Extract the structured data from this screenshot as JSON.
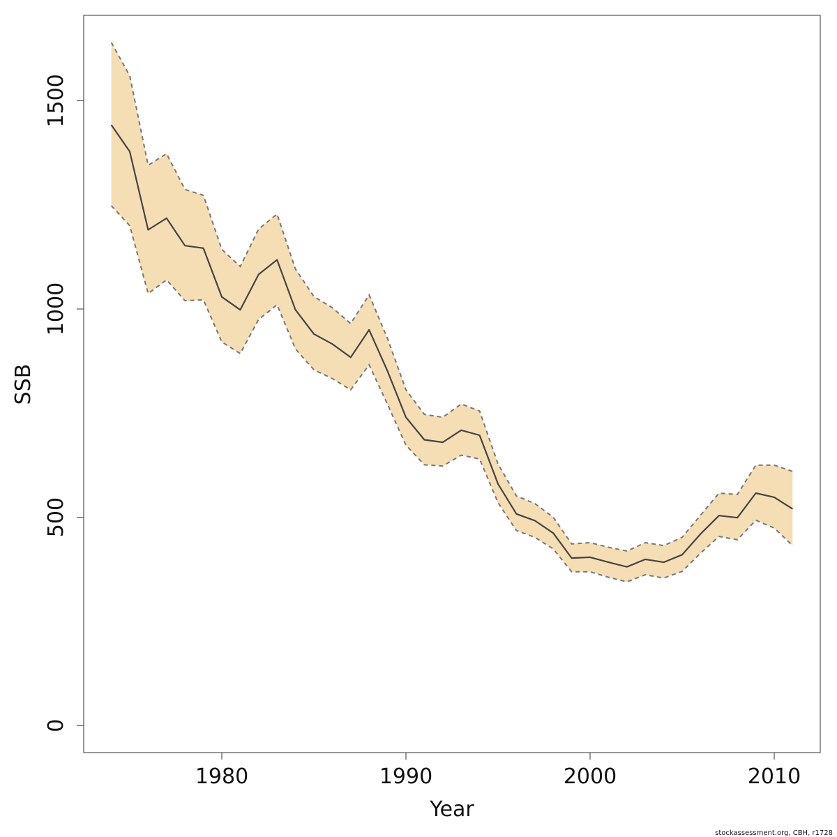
{
  "chart_data": {
    "type": "area",
    "title": "",
    "xlabel": "Year",
    "ylabel": "SSB",
    "xlim": [
      1972.5,
      2012.5
    ],
    "ylim": [
      -65,
      1705
    ],
    "x_ticks": [
      1980,
      1990,
      2000,
      2010
    ],
    "y_ticks": [
      0,
      500,
      1000,
      1500
    ],
    "grid": false,
    "x": [
      1974,
      1975,
      1976,
      1977,
      1978,
      1979,
      1980,
      1981,
      1982,
      1983,
      1984,
      1985,
      1986,
      1987,
      1988,
      1989,
      1990,
      1991,
      1992,
      1993,
      1994,
      1995,
      1996,
      1997,
      1998,
      1999,
      2000,
      2001,
      2002,
      2003,
      2004,
      2005,
      2006,
      2007,
      2008,
      2009,
      2010,
      2011
    ],
    "series": [
      {
        "name": "",
        "role": "estimate",
        "color": "#444444",
        "values": [
          1442,
          1378,
          1190,
          1218,
          1152,
          1146,
          1029,
          998,
          1083,
          1118,
          998,
          940,
          916,
          884,
          950,
          851,
          740,
          686,
          680,
          709,
          697,
          580,
          508,
          492,
          462,
          402,
          404,
          392,
          381,
          399,
          392,
          410,
          460,
          504,
          499,
          558,
          548,
          520
        ]
      },
      {
        "name": "",
        "role": "upper",
        "color": "#777777",
        "values": [
          1640,
          1560,
          1345,
          1373,
          1287,
          1273,
          1143,
          1102,
          1192,
          1228,
          1096,
          1030,
          1003,
          965,
          1034,
          929,
          806,
          747,
          740,
          772,
          755,
          628,
          551,
          533,
          500,
          436,
          439,
          428,
          419,
          439,
          432,
          452,
          505,
          558,
          555,
          625,
          625,
          610
        ]
      },
      {
        "name": "",
        "role": "lower",
        "color": "#777777",
        "values": [
          1248,
          1200,
          1037,
          1070,
          1020,
          1022,
          921,
          893,
          975,
          1010,
          904,
          854,
          833,
          806,
          866,
          771,
          673,
          626,
          623,
          649,
          640,
          535,
          468,
          452,
          424,
          369,
          369,
          356,
          345,
          362,
          354,
          370,
          414,
          454,
          446,
          493,
          474,
          432
        ]
      }
    ],
    "band_color": "#f5deb3",
    "line_color": "#444444",
    "bound_color": "#777777"
  },
  "footer": {
    "credit": "stockassessment.org, CBH, r1728"
  }
}
